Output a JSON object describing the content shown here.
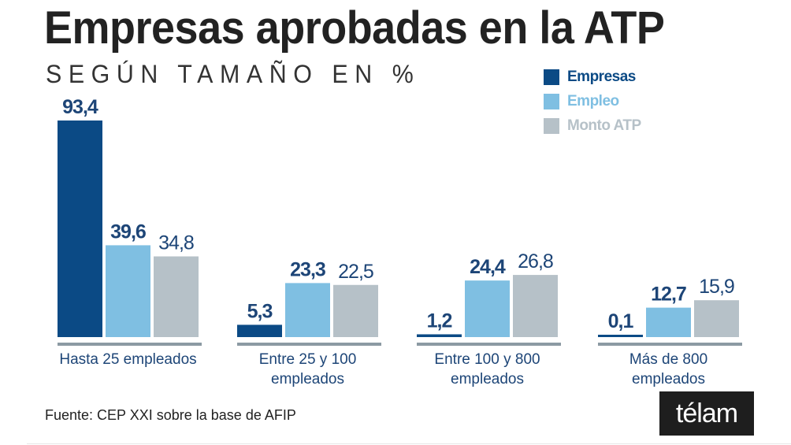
{
  "title": "Empresas aprobadas en la ATP",
  "subtitle": "SEGÚN TAMAÑO EN %",
  "source": "Fuente: CEP XXI sobre la base de AFIP",
  "logo": "télam",
  "colors": {
    "Empresas": "#0b4a85",
    "Empleo": "#7fbfe2",
    "Monto ATP": "#b6c1c8",
    "axis": "#8c9aa3",
    "label_dark": "#1d4577"
  },
  "chart_data": {
    "type": "bar",
    "title": "Empresas aprobadas en la ATP",
    "subtitle": "SEGÚN TAMAÑO EN %",
    "xlabel": "",
    "ylabel": "%",
    "ylim": [
      0,
      100
    ],
    "grid": false,
    "legend_position": "top-right",
    "categories": [
      [
        "Hasta 25 empleados"
      ],
      [
        "Entre 25 y 100",
        "empleados"
      ],
      [
        "Entre 100 y 800",
        "empleados"
      ],
      [
        "Más de  800",
        "empleados"
      ]
    ],
    "series": [
      {
        "name": "Empresas",
        "values": [
          93.4,
          5.3,
          1.2,
          0.1
        ],
        "labels": [
          "93,4",
          "5,3",
          "1,2",
          "0,1"
        ]
      },
      {
        "name": "Empleo",
        "values": [
          39.6,
          23.3,
          24.4,
          12.7
        ],
        "labels": [
          "39,6",
          "23,3",
          "24,4",
          "12,7"
        ]
      },
      {
        "name": "Monto ATP",
        "values": [
          34.8,
          22.5,
          26.8,
          15.9
        ],
        "labels": [
          "34,8",
          "22,5",
          "26,8",
          "15,9"
        ]
      }
    ]
  }
}
